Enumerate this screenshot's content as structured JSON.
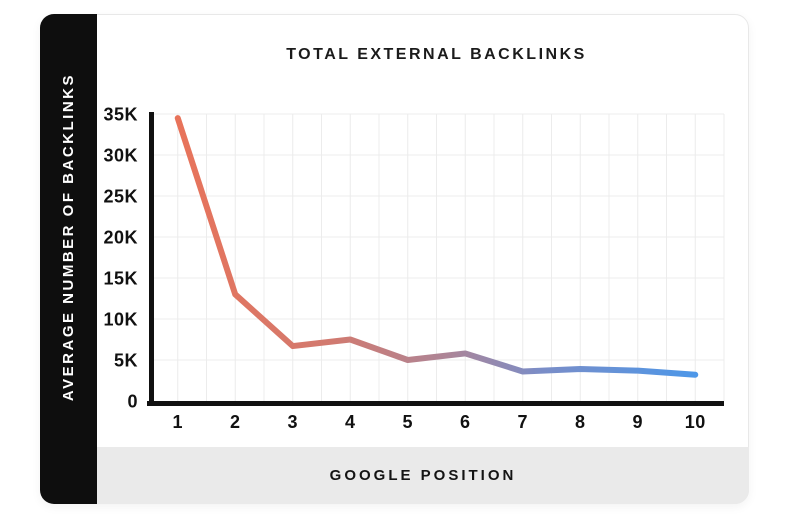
{
  "card": {
    "background": "#ffffff",
    "border_color": "#e8e8e8"
  },
  "sidebar": {
    "label": "AVERAGE NUMBER OF BACKLINKS",
    "background": "#0e0e0e",
    "text_color": "#ffffff"
  },
  "footer": {
    "label": "GOOGLE POSITION",
    "background": "#eaeaea",
    "text_color": "#141414"
  },
  "chart_data": {
    "type": "line",
    "title": "TOTAL EXTERNAL BACKLINKS",
    "xlabel": "GOOGLE POSITION",
    "ylabel": "AVERAGE NUMBER OF BACKLINKS",
    "categories": [
      "1",
      "2",
      "3",
      "4",
      "5",
      "6",
      "7",
      "8",
      "9",
      "10"
    ],
    "values": [
      34500,
      13000,
      6700,
      7500,
      5000,
      5800,
      3600,
      3900,
      3700,
      3200
    ],
    "ylim": [
      0,
      35000
    ],
    "yticks": [
      0,
      5000,
      10000,
      15000,
      20000,
      25000,
      30000,
      35000
    ],
    "ytick_labels": [
      "0",
      "5K",
      "10K",
      "15K",
      "20K",
      "25K",
      "30K",
      "35K"
    ],
    "grid": true,
    "legend": false,
    "axis_color": "#111111",
    "grid_color": "#ececec",
    "line_width": 6,
    "line_gradient": [
      {
        "offset": "0%",
        "color": "#E8735A"
      },
      {
        "offset": "30%",
        "color": "#D17A70"
      },
      {
        "offset": "52%",
        "color": "#AD8597"
      },
      {
        "offset": "70%",
        "color": "#7B8DC7"
      },
      {
        "offset": "100%",
        "color": "#4D97E8"
      }
    ]
  }
}
